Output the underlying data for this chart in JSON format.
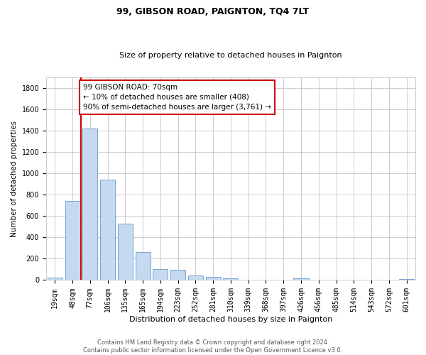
{
  "title": "99, GIBSON ROAD, PAIGNTON, TQ4 7LT",
  "subtitle": "Size of property relative to detached houses in Paignton",
  "xlabel": "Distribution of detached houses by size in Paignton",
  "ylabel": "Number of detached properties",
  "footer_line1": "Contains HM Land Registry data © Crown copyright and database right 2024.",
  "footer_line2": "Contains public sector information licensed under the Open Government Licence v3.0.",
  "bar_labels": [
    "19sqm",
    "48sqm",
    "77sqm",
    "106sqm",
    "135sqm",
    "165sqm",
    "194sqm",
    "223sqm",
    "252sqm",
    "281sqm",
    "310sqm",
    "339sqm",
    "368sqm",
    "397sqm",
    "426sqm",
    "456sqm",
    "485sqm",
    "514sqm",
    "543sqm",
    "572sqm",
    "601sqm"
  ],
  "bar_values": [
    22,
    740,
    1420,
    940,
    530,
    265,
    105,
    95,
    40,
    28,
    15,
    0,
    0,
    0,
    15,
    0,
    0,
    0,
    0,
    0,
    13
  ],
  "bar_color": "#c5d9f0",
  "bar_edge_color": "#6699cc",
  "annotation_text": "99 GIBSON ROAD: 70sqm\n← 10% of detached houses are smaller (408)\n90% of semi-detached houses are larger (3,761) →",
  "vline_index": 1.5,
  "vline_color": "#cc0000",
  "box_color": "#cc0000",
  "ylim": [
    0,
    1900
  ],
  "yticks": [
    0,
    200,
    400,
    600,
    800,
    1000,
    1200,
    1400,
    1600,
    1800
  ],
  "background_color": "#ffffff",
  "grid_color": "#cccccc",
  "title_fontsize": 9,
  "subtitle_fontsize": 8,
  "xlabel_fontsize": 8,
  "ylabel_fontsize": 7.5,
  "tick_fontsize": 7,
  "footer_fontsize": 6,
  "annotation_fontsize": 7.5
}
